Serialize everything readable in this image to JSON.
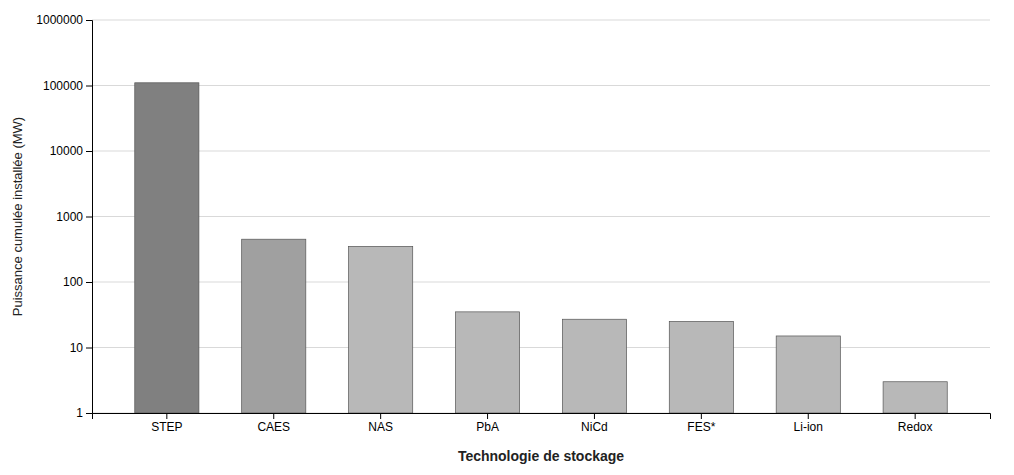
{
  "chart_data": {
    "type": "bar",
    "categories": [
      "STEP",
      "CAES",
      "NAS",
      "PbA",
      "NiCd",
      "FES*",
      "Li-ion",
      "Redox"
    ],
    "values": [
      110000,
      450,
      350,
      35,
      27,
      25,
      15,
      3
    ],
    "colors": [
      "#808080",
      "#a0a0a0",
      "#b8b8b8",
      "#b8b8b8",
      "#b8b8b8",
      "#b8b8b8",
      "#b8b8b8",
      "#b8b8b8"
    ],
    "xlabel": "Technologie de stockage",
    "ylabel": "Puissance cumulée installée (MW)",
    "log": "y",
    "ylim": [
      1,
      1000000
    ],
    "yticks": [
      1,
      10,
      100,
      1000,
      10000,
      100000,
      1000000
    ],
    "grid": true
  }
}
